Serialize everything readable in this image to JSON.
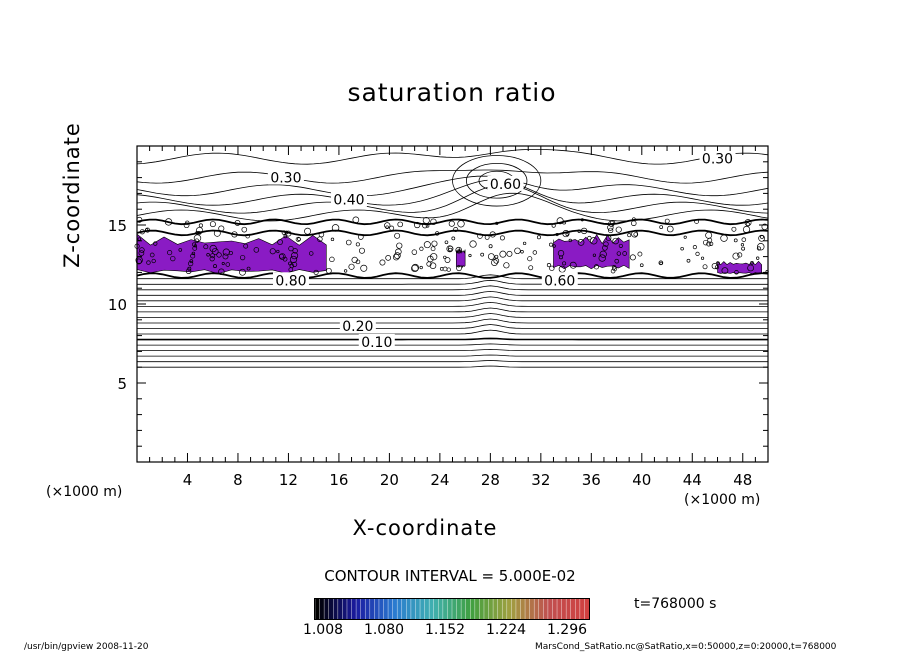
{
  "chart_data": {
    "type": "contour",
    "title": "saturation ratio",
    "xlabel": "X-coordinate",
    "ylabel": "Z-coordinate",
    "x_unit": "(×1000 m)",
    "y_unit": "(×1000 m)",
    "xlim": [
      0,
      50
    ],
    "ylim": [
      0,
      20
    ],
    "xticks": [
      4,
      8,
      12,
      16,
      20,
      24,
      28,
      32,
      36,
      40,
      44,
      48
    ],
    "yticks": [
      5,
      10,
      15
    ],
    "contour_labels": [
      {
        "text": "0.10",
        "x": 19,
        "z": 7.6
      },
      {
        "text": "0.20",
        "x": 17.5,
        "z": 8.6
      },
      {
        "text": "0.30",
        "x": 11.8,
        "z": 18.0
      },
      {
        "text": "0.30",
        "x": 46.0,
        "z": 19.2
      },
      {
        "text": "0.40",
        "x": 16.8,
        "z": 16.6
      },
      {
        "text": "0.60",
        "x": 29.2,
        "z": 17.6
      },
      {
        "text": "0.80",
        "x": 12.2,
        "z": 11.5
      },
      {
        "text": "0.60",
        "x": 33.5,
        "z": 11.5
      }
    ],
    "shaded_regions": [
      {
        "x_range": [
          0,
          15
        ],
        "z_range": [
          11.9,
          14.7
        ],
        "value": ">1.008"
      },
      {
        "x_range": [
          25.3,
          26
        ],
        "z_range": [
          12.3,
          13.7
        ],
        "value": ">1.008"
      },
      {
        "x_range": [
          33,
          39
        ],
        "z_range": [
          12.2,
          14.7
        ],
        "value": ">1.008"
      },
      {
        "x_range": [
          46,
          49.5
        ],
        "z_range": [
          11.9,
          12.8
        ],
        "value": ">1.008"
      }
    ],
    "contour_interval": "CONTOUR INTERVAL = 5.000E-02",
    "colorbar": {
      "ticks": [
        "1.008",
        "1.080",
        "1.152",
        "1.224",
        "1.296"
      ],
      "colors": [
        "#000000",
        "#1a1aa0",
        "#2a7ad0",
        "#40b0b0",
        "#40a040",
        "#a0a040",
        "#c05050",
        "#d04040"
      ]
    },
    "time_label": "t=768000 s",
    "fill_color": "#8a1bc4"
  },
  "footer": {
    "left": "/usr/bin/gpview   2008-11-20",
    "right": "MarsCond_SatRatio.nc@SatRatio,x=0:50000,z=0:20000,t=768000"
  }
}
